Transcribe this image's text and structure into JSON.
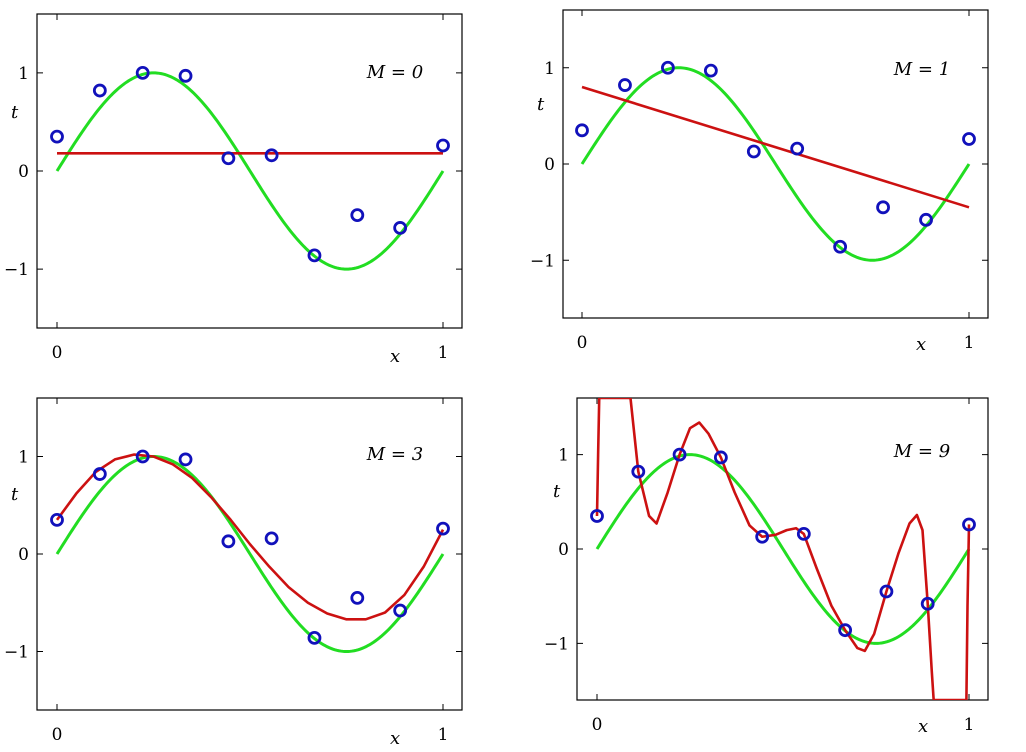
{
  "colors": {
    "true_curve": "#22dd22",
    "fit_curve": "#cc1111",
    "points": "#1111bb",
    "axes": "#000000"
  },
  "chart_data": [
    {
      "type": "line",
      "panel": "top-left",
      "annotation": "M = 0",
      "degree": 0,
      "xlabel": "x",
      "ylabel": "t",
      "xlim": [
        0,
        1
      ],
      "ylim": [
        -1.6,
        1.6
      ],
      "x_ticks": [
        "0",
        "1"
      ],
      "y_ticks": [
        "−1",
        "0",
        "1"
      ],
      "points": [
        {
          "x": 0.0,
          "y": 0.35
        },
        {
          "x": 0.111,
          "y": 0.82
        },
        {
          "x": 0.222,
          "y": 1.0
        },
        {
          "x": 0.333,
          "y": 0.97
        },
        {
          "x": 0.444,
          "y": 0.13
        },
        {
          "x": 0.556,
          "y": 0.16
        },
        {
          "x": 0.667,
          "y": -0.86
        },
        {
          "x": 0.778,
          "y": -0.45
        },
        {
          "x": 0.889,
          "y": -0.58
        },
        {
          "x": 1.0,
          "y": 0.26
        }
      ],
      "fit": [
        {
          "x": 0,
          "y": 0.18
        },
        {
          "x": 1,
          "y": 0.18
        }
      ]
    },
    {
      "type": "line",
      "panel": "top-right",
      "annotation": "M = 1",
      "degree": 1,
      "xlabel": "x",
      "ylabel": "t",
      "xlim": [
        0,
        1
      ],
      "ylim": [
        -1.6,
        1.6
      ],
      "x_ticks": [
        "0",
        "1"
      ],
      "y_ticks": [
        "−1",
        "0",
        "1"
      ],
      "points": [
        {
          "x": 0.0,
          "y": 0.35
        },
        {
          "x": 0.111,
          "y": 0.82
        },
        {
          "x": 0.222,
          "y": 1.0
        },
        {
          "x": 0.333,
          "y": 0.97
        },
        {
          "x": 0.444,
          "y": 0.13
        },
        {
          "x": 0.556,
          "y": 0.16
        },
        {
          "x": 0.667,
          "y": -0.86
        },
        {
          "x": 0.778,
          "y": -0.45
        },
        {
          "x": 0.889,
          "y": -0.58
        },
        {
          "x": 1.0,
          "y": 0.26
        }
      ],
      "fit": [
        {
          "x": 0,
          "y": 0.8
        },
        {
          "x": 1,
          "y": -0.45
        }
      ]
    },
    {
      "type": "line",
      "panel": "bottom-left",
      "annotation": "M = 3",
      "degree": 3,
      "xlabel": "x",
      "ylabel": "t",
      "xlim": [
        0,
        1
      ],
      "ylim": [
        -1.6,
        1.6
      ],
      "x_ticks": [
        "0",
        "1"
      ],
      "y_ticks": [
        "−1",
        "0",
        "1"
      ],
      "points": [
        {
          "x": 0.0,
          "y": 0.35
        },
        {
          "x": 0.111,
          "y": 0.82
        },
        {
          "x": 0.222,
          "y": 1.0
        },
        {
          "x": 0.333,
          "y": 0.97
        },
        {
          "x": 0.444,
          "y": 0.13
        },
        {
          "x": 0.556,
          "y": 0.16
        },
        {
          "x": 0.667,
          "y": -0.86
        },
        {
          "x": 0.778,
          "y": -0.45
        },
        {
          "x": 0.889,
          "y": -0.58
        },
        {
          "x": 1.0,
          "y": 0.26
        }
      ],
      "fit": [
        {
          "x": 0.0,
          "y": 0.35
        },
        {
          "x": 0.05,
          "y": 0.62
        },
        {
          "x": 0.1,
          "y": 0.84
        },
        {
          "x": 0.15,
          "y": 0.97
        },
        {
          "x": 0.2,
          "y": 1.02
        },
        {
          "x": 0.25,
          "y": 1.0
        },
        {
          "x": 0.3,
          "y": 0.92
        },
        {
          "x": 0.35,
          "y": 0.78
        },
        {
          "x": 0.4,
          "y": 0.58
        },
        {
          "x": 0.45,
          "y": 0.35
        },
        {
          "x": 0.5,
          "y": 0.1
        },
        {
          "x": 0.55,
          "y": -0.13
        },
        {
          "x": 0.6,
          "y": -0.34
        },
        {
          "x": 0.65,
          "y": -0.5
        },
        {
          "x": 0.7,
          "y": -0.61
        },
        {
          "x": 0.75,
          "y": -0.67
        },
        {
          "x": 0.8,
          "y": -0.67
        },
        {
          "x": 0.85,
          "y": -0.6
        },
        {
          "x": 0.9,
          "y": -0.42
        },
        {
          "x": 0.95,
          "y": -0.13
        },
        {
          "x": 1.0,
          "y": 0.25
        }
      ]
    },
    {
      "type": "line",
      "panel": "bottom-right",
      "annotation": "M = 9",
      "degree": 9,
      "xlabel": "x",
      "ylabel": "t",
      "xlim": [
        0,
        1
      ],
      "ylim": [
        -1.6,
        1.6
      ],
      "x_ticks": [
        "0",
        "1"
      ],
      "y_ticks": [
        "−1",
        "0",
        "1"
      ],
      "points": [
        {
          "x": 0.0,
          "y": 0.35
        },
        {
          "x": 0.111,
          "y": 0.82
        },
        {
          "x": 0.222,
          "y": 1.0
        },
        {
          "x": 0.333,
          "y": 0.97
        },
        {
          "x": 0.444,
          "y": 0.13
        },
        {
          "x": 0.556,
          "y": 0.16
        },
        {
          "x": 0.667,
          "y": -0.86
        },
        {
          "x": 0.778,
          "y": -0.45
        },
        {
          "x": 0.889,
          "y": -0.58
        },
        {
          "x": 1.0,
          "y": 0.26
        }
      ],
      "fit": [
        {
          "x": 0.0,
          "y": 0.35
        },
        {
          "x": 0.003,
          "y": 1.0
        },
        {
          "x": 0.006,
          "y": 1.6
        },
        {
          "x": 0.09,
          "y": 1.6
        },
        {
          "x": 0.111,
          "y": 0.82
        },
        {
          "x": 0.14,
          "y": 0.35
        },
        {
          "x": 0.16,
          "y": 0.27
        },
        {
          "x": 0.19,
          "y": 0.6
        },
        {
          "x": 0.222,
          "y": 1.0
        },
        {
          "x": 0.25,
          "y": 1.28
        },
        {
          "x": 0.275,
          "y": 1.34
        },
        {
          "x": 0.3,
          "y": 1.22
        },
        {
          "x": 0.333,
          "y": 0.97
        },
        {
          "x": 0.37,
          "y": 0.6
        },
        {
          "x": 0.41,
          "y": 0.25
        },
        {
          "x": 0.444,
          "y": 0.13
        },
        {
          "x": 0.48,
          "y": 0.15
        },
        {
          "x": 0.51,
          "y": 0.2
        },
        {
          "x": 0.535,
          "y": 0.22
        },
        {
          "x": 0.556,
          "y": 0.16
        },
        {
          "x": 0.59,
          "y": -0.2
        },
        {
          "x": 0.63,
          "y": -0.6
        },
        {
          "x": 0.667,
          "y": -0.86
        },
        {
          "x": 0.7,
          "y": -1.05
        },
        {
          "x": 0.72,
          "y": -1.08
        },
        {
          "x": 0.745,
          "y": -0.9
        },
        {
          "x": 0.778,
          "y": -0.45
        },
        {
          "x": 0.81,
          "y": -0.05
        },
        {
          "x": 0.84,
          "y": 0.27
        },
        {
          "x": 0.86,
          "y": 0.36
        },
        {
          "x": 0.875,
          "y": 0.2
        },
        {
          "x": 0.889,
          "y": -0.58
        },
        {
          "x": 0.9,
          "y": -1.3
        },
        {
          "x": 0.905,
          "y": -1.6
        },
        {
          "x": 0.993,
          "y": -1.6
        },
        {
          "x": 0.996,
          "y": -0.6
        },
        {
          "x": 1.0,
          "y": 0.26
        }
      ]
    }
  ]
}
